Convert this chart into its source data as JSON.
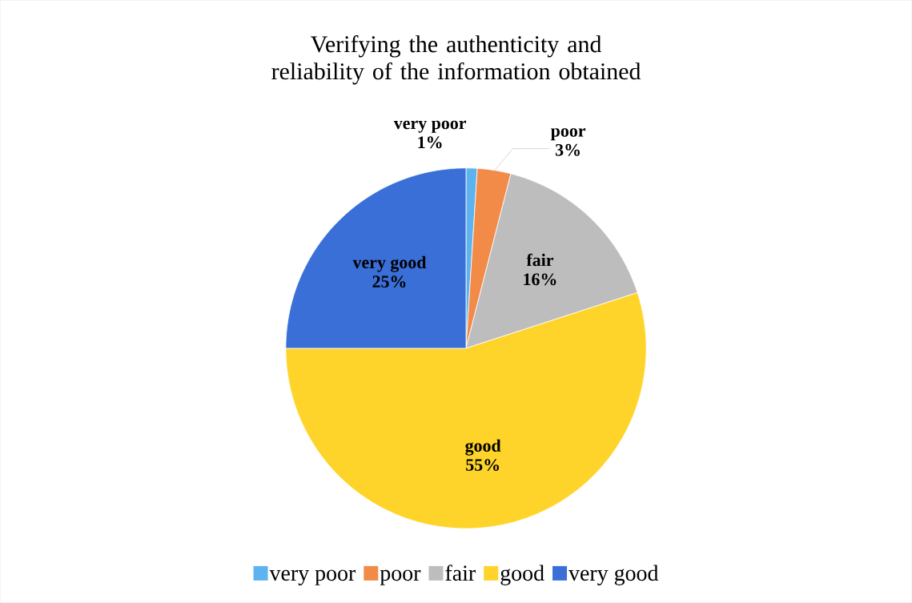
{
  "chart_data": {
    "type": "pie",
    "title": "Verifying the authenticity and reliability of the information obtained",
    "categories": [
      "very poor",
      "poor",
      "fair",
      "good",
      "very good"
    ],
    "values": [
      1,
      3,
      16,
      55,
      25
    ],
    "value_labels": [
      "1%",
      "3%",
      "16%",
      "55%",
      "25%"
    ],
    "colors": [
      "#5db3f0",
      "#f28a48",
      "#bdbdbd",
      "#ffd42a",
      "#3a6fd8"
    ],
    "legend": "bottom"
  }
}
